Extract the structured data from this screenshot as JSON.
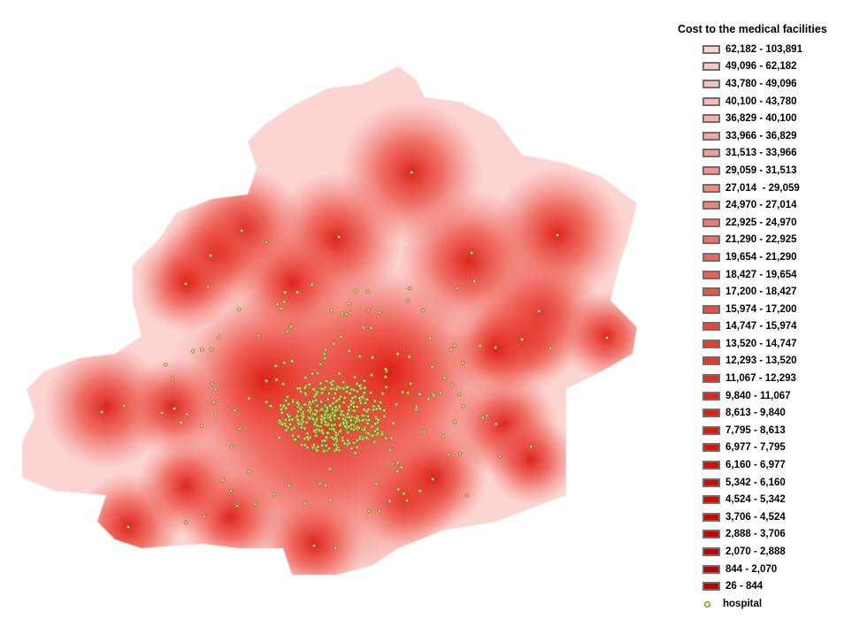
{
  "legend": {
    "title": "Cost to the medical facilities",
    "classes": [
      {
        "label": "62,182 - 103,891",
        "color": "#fcd4d2"
      },
      {
        "label": "49,096 - 62,182",
        "color": "#fbcac7"
      },
      {
        "label": "43,780 - 49,096",
        "color": "#fac1bd"
      },
      {
        "label": "40,100 - 43,780",
        "color": "#f9b8b3"
      },
      {
        "label": "36,829 - 40,100",
        "color": "#f8afa9"
      },
      {
        "label": "33,966 - 36,829",
        "color": "#f7a69f"
      },
      {
        "label": "31,513 - 33,966",
        "color": "#f69d95"
      },
      {
        "label": "29,059 - 31,513",
        "color": "#f5948b"
      },
      {
        "label": "27,014  - 29,059",
        "color": "#f48b82"
      },
      {
        "label": "24,970 - 27,014",
        "color": "#f38278"
      },
      {
        "label": "22,925 - 24,970",
        "color": "#f2796f"
      },
      {
        "label": "21,290 - 22,925",
        "color": "#f17065"
      },
      {
        "label": "19,654 - 21,290",
        "color": "#f0675c"
      },
      {
        "label": "18,427 - 19,654",
        "color": "#ef5e53"
      },
      {
        "label": "17,200 - 18,427",
        "color": "#ee554a"
      },
      {
        "label": "15,974 - 17,200",
        "color": "#ed4c41"
      },
      {
        "label": "14,747 - 15,974",
        "color": "#eb4438"
      },
      {
        "label": "13,520 - 14,747",
        "color": "#e93c30"
      },
      {
        "label": "12,293 - 13,520",
        "color": "#e73428"
      },
      {
        "label": "11,067 - 12,293",
        "color": "#e52c20"
      },
      {
        "label": "9,840 - 11,067",
        "color": "#e32519"
      },
      {
        "label": "8,613 - 9,840",
        "color": "#e01e12"
      },
      {
        "label": "7,795 - 8,613",
        "color": "#dd180c"
      },
      {
        "label": "6,977 - 7,795",
        "color": "#da1207"
      },
      {
        "label": "6,160 - 6,977",
        "color": "#d60d03"
      },
      {
        "label": "5,342 - 6,160",
        "color": "#d20a00"
      },
      {
        "label": "4,524 - 5,342",
        "color": "#ce0700"
      },
      {
        "label": "3,706 - 4,524",
        "color": "#ca0500"
      },
      {
        "label": "2,888 - 3,706",
        "color": "#c60300"
      },
      {
        "label": "2,070 - 2,888",
        "color": "#c20200"
      },
      {
        "label": "844 - 2,070",
        "color": "#be0100"
      },
      {
        "label": "26 - 844",
        "color": "#ba0000"
      }
    ],
    "hospital_label": "hospital",
    "hospital_color": "#e6f08c"
  },
  "map": {
    "far_color": "#fcd4d2",
    "near_color": "#e8322a",
    "hospital_symbol": "hospital-point-icon"
  }
}
